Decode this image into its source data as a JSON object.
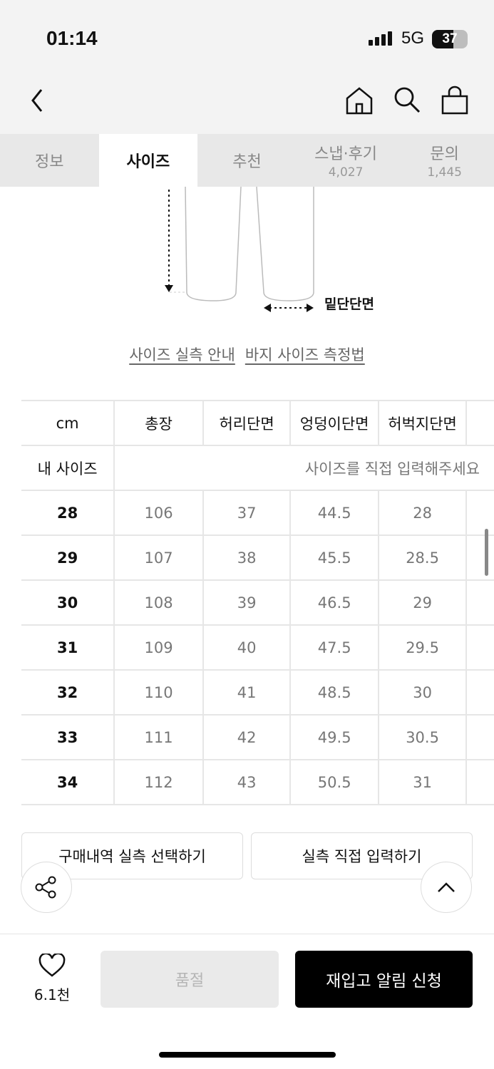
{
  "status": {
    "time": "01:14",
    "network": "5G",
    "battery": "37"
  },
  "tabs": [
    {
      "label": "정보"
    },
    {
      "label": "사이즈",
      "active": true
    },
    {
      "label": "추천"
    },
    {
      "label": "스냅·후기",
      "count": "4,027"
    },
    {
      "label": "문의",
      "count": "1,445"
    }
  ],
  "diagram": {
    "hem_label": "밑단단면"
  },
  "links": {
    "guide": "사이즈 실측 안내",
    "measure": "바지 사이즈 측정법"
  },
  "table": {
    "unit": "cm",
    "columns": [
      "총장",
      "허리단면",
      "엉덩이단면",
      "허벅지단면"
    ],
    "my_size_label": "내 사이즈",
    "my_size_placeholder": "사이즈를 직접 입력해주세요",
    "rows": [
      [
        "28",
        "106",
        "37",
        "44.5",
        "28"
      ],
      [
        "29",
        "107",
        "38",
        "45.5",
        "28.5"
      ],
      [
        "30",
        "108",
        "39",
        "46.5",
        "29"
      ],
      [
        "31",
        "109",
        "40",
        "47.5",
        "29.5"
      ],
      [
        "32",
        "110",
        "41",
        "48.5",
        "30"
      ],
      [
        "33",
        "111",
        "42",
        "49.5",
        "30.5"
      ],
      [
        "34",
        "112",
        "43",
        "50.5",
        "31"
      ]
    ]
  },
  "buttons": {
    "history": "구매내역 실측 선택하기",
    "direct": "실측 직접 입력하기"
  },
  "bottom": {
    "likes": "6.1천",
    "soldout": "품절",
    "restock": "재입고 알림 신청"
  }
}
